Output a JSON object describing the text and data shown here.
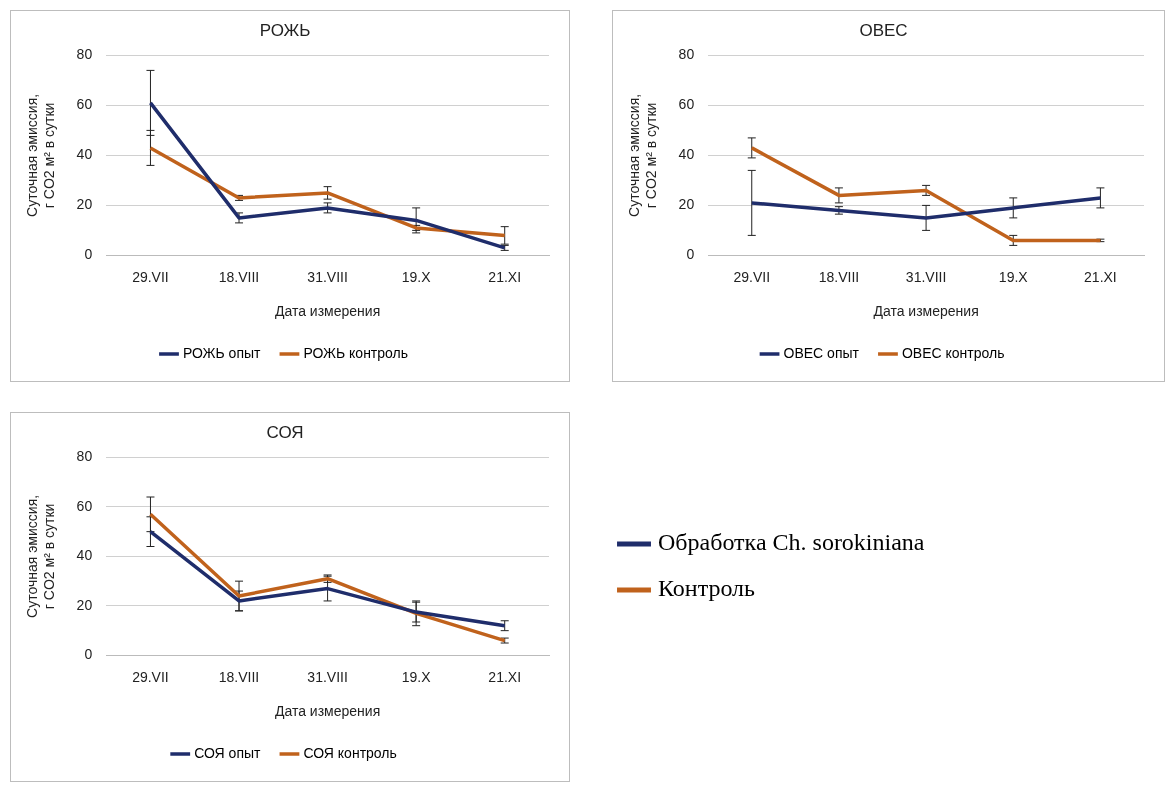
{
  "chart_data": [
    {
      "type": "line",
      "title": "РОЖЬ",
      "xlabel": "Дата измерения",
      "ylabel": "Суточная эмиссия,\nг CO2 м² в сутки",
      "categories": [
        "29.VII",
        "18.VIII",
        "31.VIII",
        "19.X",
        "21.XI"
      ],
      "ylim": [
        0,
        80
      ],
      "yticks": [
        0,
        20,
        40,
        60,
        80
      ],
      "grid": "y",
      "legend": "bottom",
      "series": [
        {
          "name": "РОЖЬ опыт",
          "color": "#1f2d6b",
          "values": [
            61,
            15,
            19,
            14,
            3
          ],
          "errors": [
            13,
            2,
            2,
            5,
            1
          ]
        },
        {
          "name": "РОЖЬ контроль",
          "color": "#c0621c",
          "values": [
            43,
            23,
            25,
            11,
            8
          ],
          "errors": [
            7,
            1,
            2.5,
            1,
            3.5
          ]
        }
      ]
    },
    {
      "type": "line",
      "title": "ОВЕС",
      "xlabel": "Дата измерения",
      "ylabel": "Суточная эмиссия,\nг CO2 м² в сутки",
      "categories": [
        "29.VII",
        "18.VIII",
        "31.VIII",
        "19.X",
        "21.XI"
      ],
      "ylim": [
        0,
        80
      ],
      "yticks": [
        0,
        20,
        40,
        60,
        80
      ],
      "grid": "y",
      "legend": "bottom",
      "series": [
        {
          "name": "ОВЕС опыт",
          "color": "#1f2d6b",
          "values": [
            21,
            18,
            15,
            19,
            23
          ],
          "errors": [
            13,
            1.5,
            5,
            4,
            4
          ]
        },
        {
          "name": "ОВЕС контроль",
          "color": "#c0621c",
          "values": [
            43,
            24,
            26,
            6,
            6
          ],
          "errors": [
            4,
            3,
            2,
            2,
            0.5
          ]
        }
      ]
    },
    {
      "type": "line",
      "title": "СОЯ",
      "xlabel": "Дата измерения",
      "ylabel": "Суточная эмиссия,\nг CO2 м² в сутки",
      "categories": [
        "29.VII",
        "18.VIII",
        "31.VIII",
        "19.X",
        "21.XI"
      ],
      "ylim": [
        0,
        80
      ],
      "yticks": [
        0,
        20,
        40,
        60,
        80
      ],
      "grid": "y",
      "legend": "bottom",
      "series": [
        {
          "name": "СОЯ опыт",
          "color": "#1f2d6b",
          "values": [
            50,
            22,
            27,
            17.5,
            12
          ],
          "errors": [
            6,
            4,
            5,
            4,
            2
          ]
        },
        {
          "name": "СОЯ контроль",
          "color": "#c0621c",
          "values": [
            57,
            24,
            31,
            17,
            6
          ],
          "errors": [
            7,
            6,
            1.5,
            5,
            1
          ]
        }
      ]
    },
    {
      "type": "other",
      "legend": "left",
      "series": [
        {
          "name": "Обработка Ch. sorokiniana",
          "color": "#1f2d6b"
        },
        {
          "name": "Контроль",
          "color": "#c0621c"
        }
      ]
    }
  ]
}
